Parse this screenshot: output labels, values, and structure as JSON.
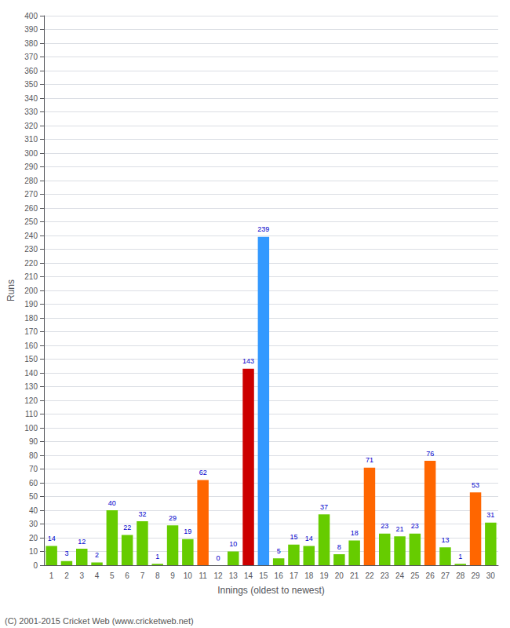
{
  "chart_data": {
    "type": "bar",
    "xlabel": "Innings (oldest to newest)",
    "ylabel": "Runs",
    "categories": [
      "1",
      "2",
      "3",
      "4",
      "5",
      "6",
      "7",
      "8",
      "9",
      "10",
      "11",
      "12",
      "13",
      "14",
      "15",
      "16",
      "17",
      "18",
      "19",
      "20",
      "21",
      "22",
      "23",
      "24",
      "25",
      "26",
      "27",
      "28",
      "29",
      "30"
    ],
    "values": [
      14,
      3,
      12,
      2,
      40,
      22,
      32,
      1,
      29,
      19,
      62,
      0,
      10,
      143,
      239,
      5,
      15,
      14,
      37,
      8,
      18,
      71,
      23,
      21,
      23,
      76,
      13,
      1,
      53,
      31
    ],
    "colors": [
      "#66cc00",
      "#66cc00",
      "#66cc00",
      "#66cc00",
      "#66cc00",
      "#66cc00",
      "#66cc00",
      "#66cc00",
      "#66cc00",
      "#66cc00",
      "#ff6600",
      "#66cc00",
      "#66cc00",
      "#cc0000",
      "#3399ff",
      "#66cc00",
      "#66cc00",
      "#66cc00",
      "#66cc00",
      "#66cc00",
      "#66cc00",
      "#ff6600",
      "#66cc00",
      "#66cc00",
      "#66cc00",
      "#ff6600",
      "#66cc00",
      "#66cc00",
      "#ff6600",
      "#66cc00"
    ],
    "ylim": [
      0,
      400
    ],
    "yticks": [
      0,
      10,
      20,
      30,
      40,
      50,
      60,
      70,
      80,
      90,
      100,
      110,
      120,
      130,
      140,
      150,
      160,
      170,
      180,
      190,
      200,
      210,
      220,
      230,
      240,
      250,
      260,
      270,
      280,
      290,
      300,
      310,
      320,
      330,
      340,
      350,
      360,
      370,
      380,
      390,
      400
    ],
    "grid": true,
    "data_labels": true,
    "annotations": [
      "(C) 2001-2015 Cricket Web (www.cricketweb.net)"
    ]
  }
}
